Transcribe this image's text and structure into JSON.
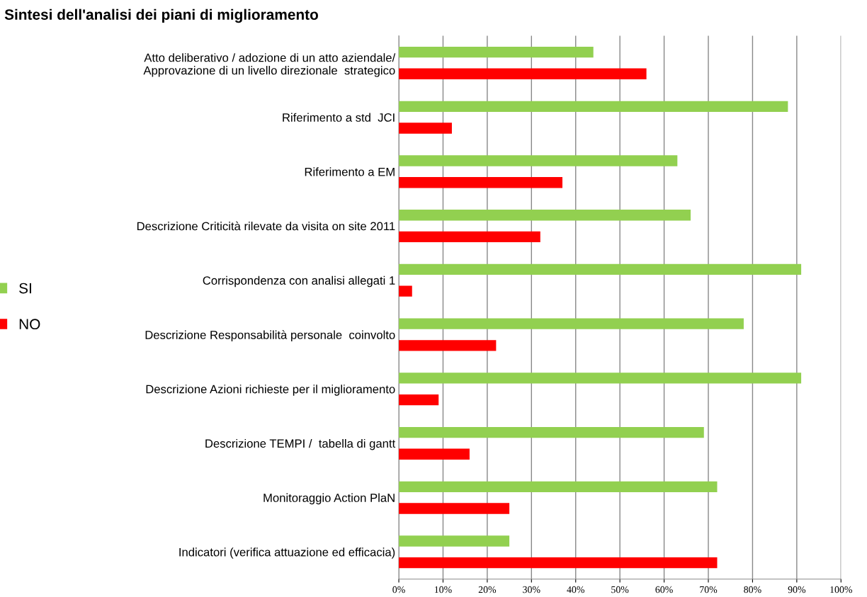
{
  "chart_data": {
    "type": "bar",
    "orientation": "horizontal",
    "title": "Sintesi dell'analisi dei piani di miglioramento",
    "categories": [
      "Atto deliberativo / adozione di un atto aziendale/\nApprovazione di un livello direzionale  strategico",
      "Riferimento a std  JCI",
      "Riferimento a EM",
      "Descrizione Criticità rilevate da visita on site 2011",
      "Corrispondenza con analisi allegati 1",
      "Descrizione Responsabilità personale  coinvolto",
      "Descrizione Azioni richieste per il miglioramento",
      "Descrizione TEMPI /  tabella di gantt",
      "Monitoraggio Action PlaN",
      "Indicatori (verifica attuazione ed efficacia)"
    ],
    "series": [
      {
        "name": "SI",
        "color": "#92d050",
        "values": [
          44,
          88,
          63,
          66,
          91,
          78,
          91,
          69,
          72,
          25
        ]
      },
      {
        "name": "NO",
        "color": "#ff0000",
        "values": [
          56,
          12,
          37,
          32,
          3,
          22,
          9,
          16,
          25,
          72
        ]
      }
    ],
    "xlim": [
      0,
      100
    ],
    "xticks": [
      {
        "value": 0,
        "label": "0%"
      },
      {
        "value": 10,
        "label": "10%"
      },
      {
        "value": 20,
        "label": "20%"
      },
      {
        "value": 30,
        "label": "30%"
      },
      {
        "value": 40,
        "label": "40%"
      },
      {
        "value": 50,
        "label": "50%"
      },
      {
        "value": 60,
        "label": "60%"
      },
      {
        "value": 70,
        "label": "70%"
      },
      {
        "value": 80,
        "label": "80%"
      },
      {
        "value": 90,
        "label": "90%"
      },
      {
        "value": 100,
        "label": "100%"
      }
    ],
    "grid": "x",
    "legend": "left"
  }
}
